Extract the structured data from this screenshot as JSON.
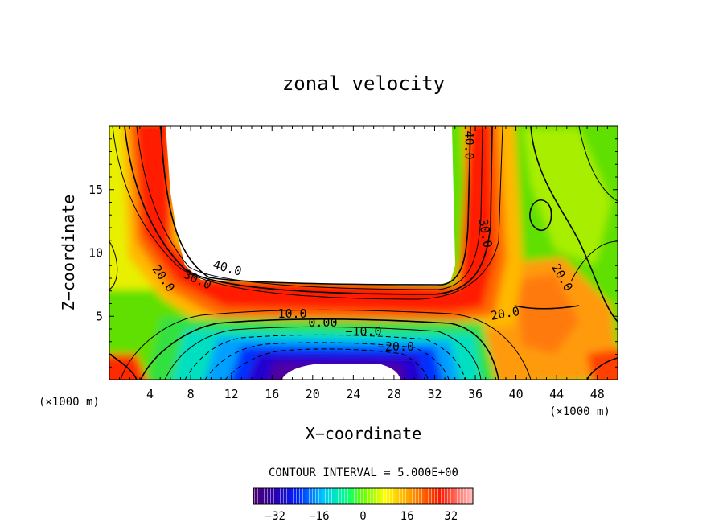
{
  "chart_data": {
    "type": "heatmap",
    "title": "zonal velocity",
    "xlabel": "X−coordinate",
    "ylabel": "Z−coordinate",
    "x_unit_left": "(×1000 m)",
    "x_unit_right": "(×1000 m)",
    "xlim": [
      0,
      50
    ],
    "ylim": [
      0,
      20
    ],
    "x_ticks": [
      "4",
      "8",
      "12",
      "16",
      "20",
      "24",
      "28",
      "32",
      "36",
      "40",
      "44",
      "48"
    ],
    "y_ticks": [
      "5",
      "10",
      "15"
    ],
    "contour_interval_text": "CONTOUR INTERVAL = 5.000E+00",
    "colorbar": {
      "range": [
        -40,
        40
      ],
      "ticks": [
        "−32",
        "−16",
        "0",
        "16",
        "32"
      ],
      "tick_values": [
        -32,
        -16,
        0,
        16,
        32
      ]
    },
    "contour_labels": [
      {
        "text": "40.0",
        "x": 35.0,
        "z": 18.5,
        "rotate": 90
      },
      {
        "text": "30.0",
        "x": 36.6,
        "z": 11.5,
        "rotate": 80
      },
      {
        "text": "40.0",
        "x": 11.5,
        "z": 8.5,
        "rotate": 15
      },
      {
        "text": "30.0",
        "x": 8.5,
        "z": 7.6,
        "rotate": 25
      },
      {
        "text": "20.0",
        "x": 5.0,
        "z": 7.8,
        "rotate": 55
      },
      {
        "text": "20.0",
        "x": 44.2,
        "z": 7.9,
        "rotate": 60
      },
      {
        "text": "20.0",
        "x": 39.0,
        "z": 4.9,
        "rotate": -10
      },
      {
        "text": "10.0",
        "x": 18.0,
        "z": 4.9,
        "rotate": 0
      },
      {
        "text": "0.00",
        "x": 21.0,
        "z": 4.2,
        "rotate": 0
      },
      {
        "text": "−10.0",
        "x": 25.0,
        "z": 3.5,
        "rotate": 0
      },
      {
        "text": "−20.0",
        "x": 28.2,
        "z": 2.3,
        "rotate": 0
      }
    ]
  }
}
